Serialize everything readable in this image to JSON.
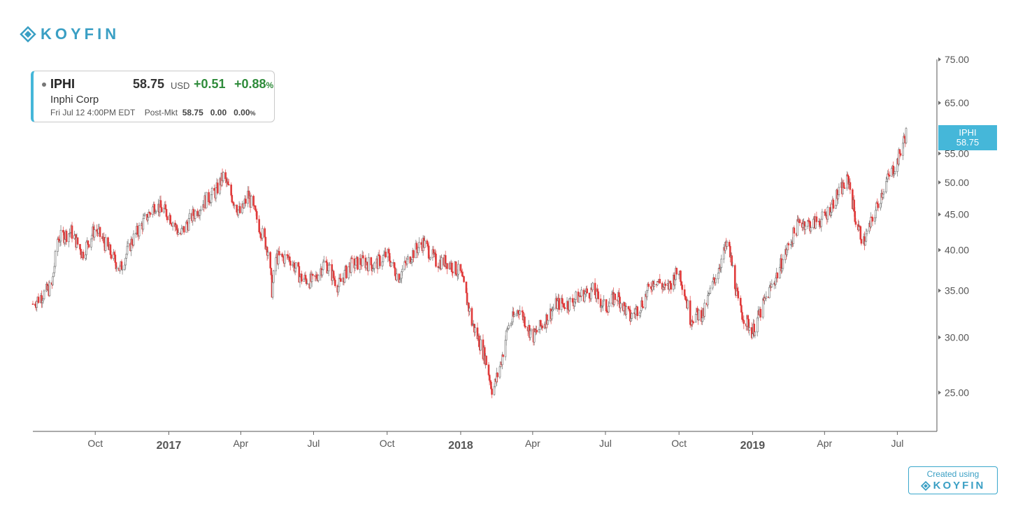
{
  "brand": {
    "name": "KOYFIN",
    "color": "#3a9fc4",
    "icon": "koyfin-logo-icon"
  },
  "ticker": {
    "symbol": "IPHI",
    "price": "58.75",
    "currency": "USD",
    "change": "+0.51",
    "change_pct": "+0.88",
    "pct_sign": "%",
    "name": "Inphi Corp",
    "timestamp": "Fri Jul 12 4:00PM EDT",
    "post_label": "Post-Mkt",
    "post_price": "58.75",
    "post_change": "0.00",
    "post_pct": "0.00",
    "post_pct_sign": "%"
  },
  "current_tag": {
    "symbol": "IPHI",
    "price": "58.75",
    "color": "#45b7d9"
  },
  "footer": {
    "created_label": "Created using",
    "brand": "KOYFIN"
  },
  "chart_data": {
    "type": "candlestick",
    "scale": "log",
    "ylim": [
      22,
      75
    ],
    "y_ticks": [
      "75.00",
      "65.00",
      "55.00",
      "50.00",
      "45.00",
      "40.00",
      "35.00",
      "30.00",
      "25.00"
    ],
    "x_ticks": [
      {
        "label": "Oct",
        "date": "2016-10-01",
        "bold": false
      },
      {
        "label": "2017",
        "date": "2017-01-01",
        "bold": true
      },
      {
        "label": "Apr",
        "date": "2017-04-01",
        "bold": false
      },
      {
        "label": "Jul",
        "date": "2017-07-01",
        "bold": false
      },
      {
        "label": "Oct",
        "date": "2017-10-01",
        "bold": false
      },
      {
        "label": "2018",
        "date": "2018-01-01",
        "bold": true
      },
      {
        "label": "Apr",
        "date": "2018-04-01",
        "bold": false
      },
      {
        "label": "Jul",
        "date": "2018-07-01",
        "bold": false
      },
      {
        "label": "Oct",
        "date": "2018-10-01",
        "bold": false
      },
      {
        "label": "2019",
        "date": "2019-01-01",
        "bold": true
      },
      {
        "label": "Apr",
        "date": "2019-04-01",
        "bold": false
      },
      {
        "label": "Jul",
        "date": "2019-07-01",
        "bold": false
      }
    ],
    "date_range": [
      "2016-07-15",
      "2019-07-12"
    ],
    "colors": {
      "up": "#6b6b6b",
      "down": "#e03a3a"
    },
    "series": [
      {
        "name": "IPHI",
        "points": [
          [
            "2016-07-15",
            33.5
          ],
          [
            "2016-08-08",
            35.5
          ],
          [
            "2016-08-15",
            41.5
          ],
          [
            "2016-09-01",
            42.5
          ],
          [
            "2016-09-15",
            39.5
          ],
          [
            "2016-10-01",
            43.0
          ],
          [
            "2016-10-15",
            40.5
          ],
          [
            "2016-11-01",
            37.5
          ],
          [
            "2016-11-15",
            41.0
          ],
          [
            "2016-12-01",
            44.0
          ],
          [
            "2016-12-15",
            46.5
          ],
          [
            "2017-01-01",
            45.0
          ],
          [
            "2017-01-15",
            42.0
          ],
          [
            "2017-02-01",
            45.0
          ],
          [
            "2017-02-15",
            47.0
          ],
          [
            "2017-03-01",
            48.5
          ],
          [
            "2017-03-10",
            51.0
          ],
          [
            "2017-03-25",
            46.5
          ],
          [
            "2017-04-01",
            45.0
          ],
          [
            "2017-04-10",
            48.0
          ],
          [
            "2017-04-25",
            43.0
          ],
          [
            "2017-05-05",
            40.0
          ],
          [
            "2017-05-10",
            35.0
          ],
          [
            "2017-05-15",
            39.0
          ],
          [
            "2017-06-01",
            39.0
          ],
          [
            "2017-06-15",
            36.5
          ],
          [
            "2017-07-01",
            36.0
          ],
          [
            "2017-07-15",
            38.5
          ],
          [
            "2017-08-01",
            35.5
          ],
          [
            "2017-08-15",
            38.0
          ],
          [
            "2017-09-01",
            38.5
          ],
          [
            "2017-09-15",
            38.0
          ],
          [
            "2017-10-01",
            39.5
          ],
          [
            "2017-10-15",
            36.5
          ],
          [
            "2017-11-01",
            39.5
          ],
          [
            "2017-11-15",
            41.0
          ],
          [
            "2017-12-01",
            38.5
          ],
          [
            "2017-12-15",
            38.5
          ],
          [
            "2018-01-01",
            37.0
          ],
          [
            "2018-01-15",
            31.5
          ],
          [
            "2018-02-01",
            28.0
          ],
          [
            "2018-02-10",
            25.0
          ],
          [
            "2018-02-20",
            27.5
          ],
          [
            "2018-03-01",
            31.0
          ],
          [
            "2018-03-15",
            33.0
          ],
          [
            "2018-04-01",
            30.0
          ],
          [
            "2018-04-15",
            31.5
          ],
          [
            "2018-05-01",
            33.5
          ],
          [
            "2018-05-15",
            33.5
          ],
          [
            "2018-06-01",
            34.5
          ],
          [
            "2018-06-15",
            35.0
          ],
          [
            "2018-07-01",
            33.0
          ],
          [
            "2018-07-15",
            34.5
          ],
          [
            "2018-08-01",
            32.0
          ],
          [
            "2018-08-15",
            33.5
          ],
          [
            "2018-09-01",
            36.5
          ],
          [
            "2018-09-15",
            35.0
          ],
          [
            "2018-10-01",
            37.5
          ],
          [
            "2018-10-15",
            32.0
          ],
          [
            "2018-11-01",
            32.5
          ],
          [
            "2018-11-15",
            36.5
          ],
          [
            "2018-12-01",
            41.0
          ],
          [
            "2018-12-15",
            33.0
          ],
          [
            "2019-01-01",
            30.5
          ],
          [
            "2019-01-15",
            33.5
          ],
          [
            "2019-02-01",
            37.0
          ],
          [
            "2019-02-15",
            40.5
          ],
          [
            "2019-03-01",
            44.0
          ],
          [
            "2019-03-15",
            43.5
          ],
          [
            "2019-04-01",
            44.5
          ],
          [
            "2019-04-15",
            47.5
          ],
          [
            "2019-05-01",
            50.5
          ],
          [
            "2019-05-10",
            44.0
          ],
          [
            "2019-05-20",
            41.0
          ],
          [
            "2019-06-01",
            44.5
          ],
          [
            "2019-06-15",
            49.5
          ],
          [
            "2019-07-01",
            53.5
          ],
          [
            "2019-07-12",
            58.75
          ]
        ]
      }
    ]
  }
}
